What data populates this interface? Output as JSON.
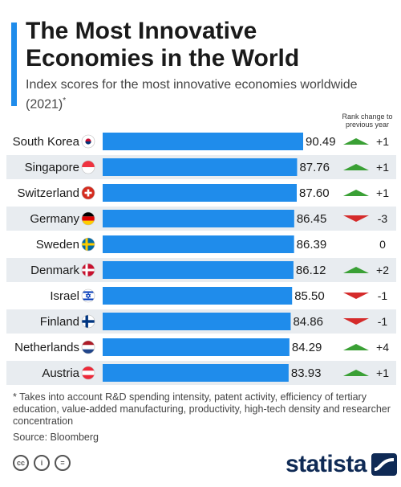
{
  "header": {
    "title": "The Most Innovative Economies in the World",
    "subtitle": "Index scores for the most innovative economies worldwide (2021)",
    "subtitle_mark": "*",
    "rank_header": "Rank change to previous year"
  },
  "footer": {
    "footnote": "* Takes into account R&D spending intensity, patent activity, efficiency of tertiary education, value-added manufacturing, productivity, high-tech density and researcher concentration",
    "source": "Source: Bloomberg",
    "brand": "statista"
  },
  "colors": {
    "bar": "#1f8ceb",
    "row_band": "#e8ecf0",
    "up": "#3aa035",
    "down": "#d52b2b",
    "accent": "#1f8ceb"
  },
  "icons": [
    "flag-south-korea-icon",
    "flag-singapore-icon",
    "flag-switzerland-icon",
    "flag-germany-icon",
    "flag-sweden-icon",
    "flag-denmark-icon",
    "flag-israel-icon",
    "flag-finland-icon",
    "flag-netherlands-icon",
    "flag-austria-icon",
    "cc-icon",
    "attribution-icon",
    "no-derivatives-icon",
    "statista-logo-icon"
  ],
  "chart_data": {
    "type": "bar",
    "orientation": "horizontal",
    "title": "The Most Innovative Economies in the World",
    "subtitle": "Index scores for the most innovative economies worldwide (2021)",
    "categories": [
      "South Korea",
      "Singapore",
      "Switzerland",
      "Germany",
      "Sweden",
      "Denmark",
      "Israel",
      "Finland",
      "Netherlands",
      "Austria"
    ],
    "values": [
      90.49,
      87.76,
      87.6,
      86.45,
      86.39,
      86.12,
      85.5,
      84.86,
      84.29,
      83.93
    ],
    "value_labels": [
      "90.49",
      "87.76",
      "87.60",
      "86.45",
      "86.39",
      "86.12",
      "85.50",
      "84.86",
      "84.29",
      "83.93"
    ],
    "rank_change": [
      1,
      1,
      1,
      -3,
      0,
      2,
      -1,
      -1,
      4,
      1
    ],
    "rank_change_labels": [
      "+1",
      "+1",
      "+1",
      "-3",
      "0",
      "+2",
      "-1",
      "-1",
      "+4",
      "+1"
    ],
    "xlim": [
      0,
      90.49
    ],
    "grid": false,
    "legend": "none"
  }
}
